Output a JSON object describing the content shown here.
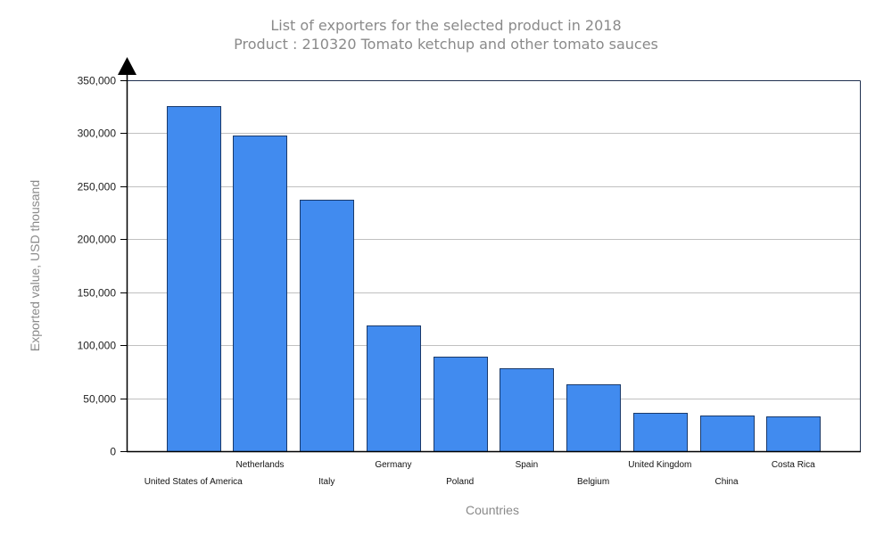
{
  "chart_data": {
    "type": "bar",
    "title": "List of exporters for the selected product in 2018",
    "subtitle": "Product : 210320 Tomato ketchup and other tomato sauces",
    "xlabel": "Countries",
    "ylabel": "Exported value, USD thousand",
    "categories": [
      "United States of America",
      "Netherlands",
      "Italy",
      "Germany",
      "Poland",
      "Spain",
      "Belgium",
      "United Kingdom",
      "China",
      "Costa Rica"
    ],
    "values": [
      326000,
      297500,
      237000,
      118300,
      88900,
      78200,
      63100,
      35900,
      33600,
      32500
    ],
    "ylim": [
      0,
      350000
    ],
    "yticks": [
      0,
      50000,
      100000,
      150000,
      200000,
      250000,
      300000,
      350000
    ],
    "ytick_labels": [
      "0",
      "50,000",
      "100,000",
      "150,000",
      "200,000",
      "250,000",
      "300,000",
      "350,000"
    ],
    "grid": true,
    "legend": "none",
    "colors": {
      "bar_fill": "#418bef",
      "bar_stroke": "#1a3a6b",
      "grid": "#c0c0c0",
      "frame": "#1f3050",
      "axis": "#000000"
    }
  }
}
